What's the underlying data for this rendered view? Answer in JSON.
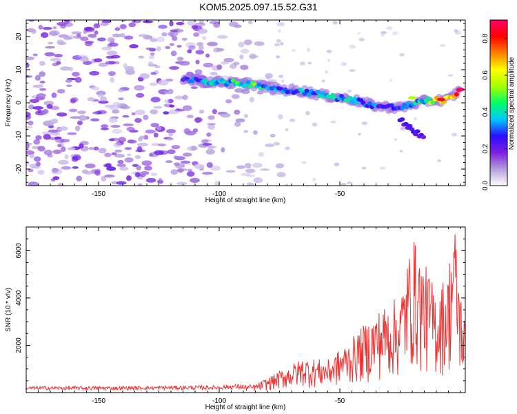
{
  "title": "KOM5.2025.097.15.52.G31",
  "chart_data": [
    {
      "type": "heatmap",
      "xlabel": "Height of straight line (km)",
      "ylabel": "Frequency (Hz)",
      "xlim": [
        -180,
        2
      ],
      "ylim": [
        -25,
        25
      ],
      "xticks": [
        -150,
        -100,
        -50
      ],
      "yticks": [
        -20,
        -10,
        0,
        10,
        20
      ],
      "colorbar": {
        "label": "Normalized spectral amplitude",
        "range": [
          0.0,
          0.9
        ],
        "ticks": [
          0.0,
          0.2,
          0.4,
          0.6,
          0.8
        ],
        "colormap": [
          "#ffffff",
          "#b39ddb",
          "#7b1fe0",
          "#2a0fff",
          "#00c8ff",
          "#00ff66",
          "#a8ff00",
          "#ffff00",
          "#ff8000",
          "#ff0000",
          "#ff0066"
        ]
      },
      "features": {
        "noise_band": {
          "x_range": [
            -180,
            -80
          ],
          "freq_range": [
            -25,
            25
          ]
        },
        "signal_track": [
          {
            "x": -115,
            "f": 7.5,
            "a": 0.25
          },
          {
            "x": -105,
            "f": 6.5,
            "a": 0.35
          },
          {
            "x": -95,
            "f": 6.0,
            "a": 0.4
          },
          {
            "x": -85,
            "f": 5.5,
            "a": 0.45
          },
          {
            "x": -75,
            "f": 4.0,
            "a": 0.3
          },
          {
            "x": -65,
            "f": 3.5,
            "a": 0.35
          },
          {
            "x": -55,
            "f": 2.0,
            "a": 0.4
          },
          {
            "x": -45,
            "f": 1.0,
            "a": 0.35
          },
          {
            "x": -35,
            "f": -1.0,
            "a": 0.3
          },
          {
            "x": -25,
            "f": -1.5,
            "a": 0.3
          },
          {
            "x": -15,
            "f": 0.5,
            "a": 0.45
          },
          {
            "x": -5,
            "f": 1.0,
            "a": 0.75
          },
          {
            "x": 0,
            "f": 4.0,
            "a": 0.8
          }
        ]
      }
    },
    {
      "type": "line",
      "xlabel": "Height of straight line (km)",
      "ylabel": "SNR (10 * v/v)",
      "xlim": [
        -180,
        2
      ],
      "ylim": [
        0,
        7000
      ],
      "xticks": [
        -150,
        -100,
        -50
      ],
      "yticks": [
        2000,
        4000,
        6000
      ],
      "color": "#ee3333",
      "envelope": [
        {
          "x": -180,
          "y": 200
        },
        {
          "x": -140,
          "y": 200
        },
        {
          "x": -100,
          "y": 230
        },
        {
          "x": -85,
          "y": 300
        },
        {
          "x": -75,
          "y": 800
        },
        {
          "x": -65,
          "y": 1300
        },
        {
          "x": -55,
          "y": 1200
        },
        {
          "x": -45,
          "y": 2000
        },
        {
          "x": -35,
          "y": 3000
        },
        {
          "x": -25,
          "y": 3600
        },
        {
          "x": -20,
          "y": 5800
        },
        {
          "x": -10,
          "y": 3800
        },
        {
          "x": -5,
          "y": 4500
        },
        {
          "x": -3,
          "y": 6900
        },
        {
          "x": 0,
          "y": 3900
        },
        {
          "x": 2,
          "y": 2500
        }
      ]
    }
  ]
}
